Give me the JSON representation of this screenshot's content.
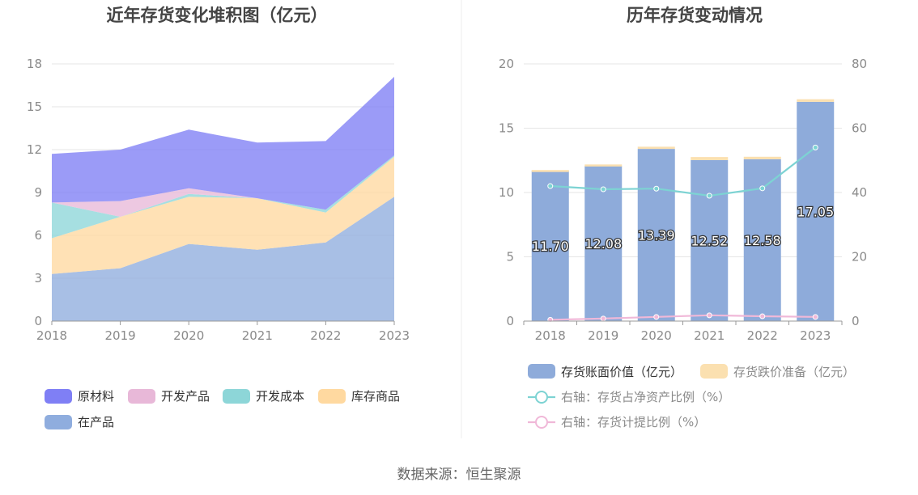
{
  "source_label": "数据来源：恒生聚源",
  "chart_data": [
    {
      "type": "area",
      "title": "近年存货变化堆积图（亿元）",
      "x": [
        "2018",
        "2019",
        "2020",
        "2021",
        "2022",
        "2023"
      ],
      "ylim": [
        0,
        18
      ],
      "yticks": [
        0,
        3,
        6,
        9,
        12,
        15,
        18
      ],
      "grid": true,
      "legend_position": "bottom",
      "series": [
        {
          "name": "在产品",
          "color": "#8fadde",
          "values": [
            3.3,
            3.7,
            5.4,
            5.0,
            5.5,
            8.7
          ]
        },
        {
          "name": "库存商品",
          "color": "#ffd9a0",
          "values": [
            2.5,
            3.6,
            3.3,
            3.6,
            2.1,
            2.8
          ]
        },
        {
          "name": "开发成本",
          "color": "#8dd6d8",
          "values": [
            2.5,
            0.0,
            0.2,
            0.0,
            0.2,
            0.1
          ]
        },
        {
          "name": "开发产品",
          "color": "#e8b8d8",
          "values": [
            0.0,
            1.1,
            0.4,
            0.0,
            0.0,
            0.0
          ]
        },
        {
          "name": "原材料",
          "color": "#7f7ff5",
          "values": [
            3.4,
            3.6,
            4.1,
            3.9,
            4.8,
            5.5
          ]
        }
      ],
      "legend_order": [
        "原材料",
        "开发产品",
        "开发成本",
        "库存商品",
        "在产品"
      ]
    },
    {
      "type": "bar",
      "title": "历年存货变动情况",
      "categories": [
        "2018",
        "2019",
        "2020",
        "2021",
        "2022",
        "2023"
      ],
      "ylim": [
        0,
        20
      ],
      "yticks": [
        0,
        5,
        10,
        15,
        20
      ],
      "y2lim": [
        0,
        80
      ],
      "y2ticks": [
        0,
        20,
        40,
        60,
        80
      ],
      "grid": true,
      "legend_position": "bottom",
      "series": [
        {
          "name": "存货账面价值（亿元）",
          "type": "bar",
          "color": "#8eabda",
          "values": [
            11.7,
            12.08,
            13.39,
            12.52,
            12.58,
            17.05
          ],
          "value_labels": [
            "11.70",
            "12.08",
            "13.39",
            "12.52",
            "12.58",
            "17.05"
          ]
        },
        {
          "name": "存货跌价准备（亿元）",
          "type": "bar",
          "color": "#fbe0b0",
          "values": [
            0.05,
            0.1,
            0.17,
            0.24,
            0.2,
            0.2
          ]
        },
        {
          "name": "右轴：存货占净资产比例（%）",
          "type": "line",
          "axis": "right",
          "color": "#7dd3d3",
          "values": [
            42.0,
            41.0,
            41.2,
            39.0,
            41.3,
            54.0
          ]
        },
        {
          "name": "右轴：存货计提比例（%）",
          "type": "line",
          "axis": "right",
          "color": "#f0b8d8",
          "values": [
            0.4,
            0.8,
            1.3,
            1.8,
            1.5,
            1.3
          ]
        }
      ]
    }
  ]
}
